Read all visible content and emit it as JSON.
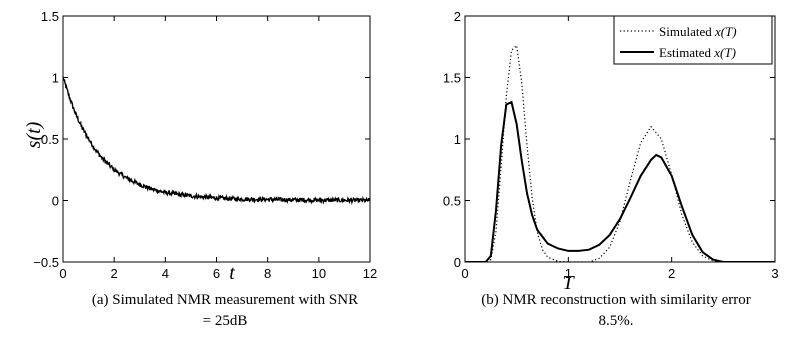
{
  "chart_data": [
    {
      "type": "line",
      "panel": "(a)",
      "xlabel": "t",
      "ylabel": "s(t)",
      "xlim": [
        0,
        12
      ],
      "ylim": [
        -0.5,
        1.5
      ],
      "xticks": [
        0,
        2,
        4,
        6,
        8,
        10,
        12
      ],
      "yticks": [
        -0.5,
        0,
        0.5,
        1,
        1.5
      ],
      "ytick_labels": [
        "−0.5",
        "0",
        "0.5",
        "1",
        "1.5"
      ],
      "grid": false,
      "series": [
        {
          "x": [
            0,
            0.25,
            0.5,
            0.75,
            1,
            1.25,
            1.5,
            1.75,
            2,
            2.5,
            3,
            3.5,
            4,
            4.5,
            5,
            5.5,
            6,
            7,
            8,
            9,
            10,
            11,
            12
          ],
          "y": [
            1.0,
            0.84,
            0.7,
            0.59,
            0.5,
            0.42,
            0.35,
            0.3,
            0.25,
            0.18,
            0.13,
            0.09,
            0.065,
            0.05,
            0.038,
            0.028,
            0.02,
            0.012,
            0.008,
            0.005,
            0.003,
            0.002,
            0.0
          ],
          "color": "#000000",
          "style": "solid noisy"
        }
      ],
      "caption": [
        "(a)  Simulated NMR measurement with SNR",
        "= 25dB"
      ]
    },
    {
      "type": "line",
      "panel": "(b)",
      "xlabel": "T",
      "ylabel": "",
      "xlim": [
        0,
        3
      ],
      "ylim": [
        0,
        2
      ],
      "xticks": [
        0,
        1,
        2,
        3
      ],
      "yticks": [
        0,
        0.5,
        1,
        1.5,
        2
      ],
      "grid": false,
      "legend_position": "top-right",
      "series": [
        {
          "name": "Simulated x(T)",
          "legend_plain": "Simulated ",
          "legend_italic": "x(T)",
          "style": "dotted",
          "x": [
            0,
            0.2,
            0.25,
            0.3,
            0.35,
            0.4,
            0.45,
            0.5,
            0.55,
            0.6,
            0.65,
            0.7,
            0.75,
            0.8,
            0.9,
            1.0,
            1.1,
            1.2,
            1.3,
            1.4,
            1.5,
            1.6,
            1.7,
            1.8,
            1.9,
            2.0,
            2.1,
            2.2,
            2.3,
            2.4,
            2.5,
            3.0
          ],
          "y": [
            0,
            0,
            0.02,
            0.25,
            0.78,
            1.35,
            1.72,
            1.76,
            1.45,
            0.95,
            0.52,
            0.24,
            0.1,
            0.04,
            0.005,
            0.0,
            0.0,
            0.0,
            0.03,
            0.12,
            0.33,
            0.66,
            0.97,
            1.1,
            1.0,
            0.71,
            0.38,
            0.16,
            0.05,
            0.01,
            0.0,
            0.0
          ]
        },
        {
          "name": "Estimated x(T)",
          "legend_plain": "Estimated ",
          "legend_italic": "x(T)",
          "style": "solid",
          "x": [
            0,
            0.2,
            0.25,
            0.3,
            0.35,
            0.4,
            0.45,
            0.5,
            0.55,
            0.6,
            0.65,
            0.7,
            0.8,
            0.9,
            1.0,
            1.1,
            1.2,
            1.3,
            1.4,
            1.5,
            1.6,
            1.7,
            1.8,
            1.85,
            1.9,
            2.0,
            2.1,
            2.2,
            2.3,
            2.4,
            2.5,
            3.0
          ],
          "y": [
            0,
            0,
            0.05,
            0.42,
            0.95,
            1.28,
            1.3,
            1.12,
            0.82,
            0.56,
            0.38,
            0.26,
            0.15,
            0.11,
            0.09,
            0.09,
            0.1,
            0.14,
            0.22,
            0.35,
            0.52,
            0.7,
            0.83,
            0.87,
            0.85,
            0.7,
            0.45,
            0.22,
            0.08,
            0.02,
            0.0,
            0.0
          ]
        }
      ],
      "caption": [
        "(b)  NMR reconstruction with similarity error",
        "8.5%."
      ]
    }
  ]
}
